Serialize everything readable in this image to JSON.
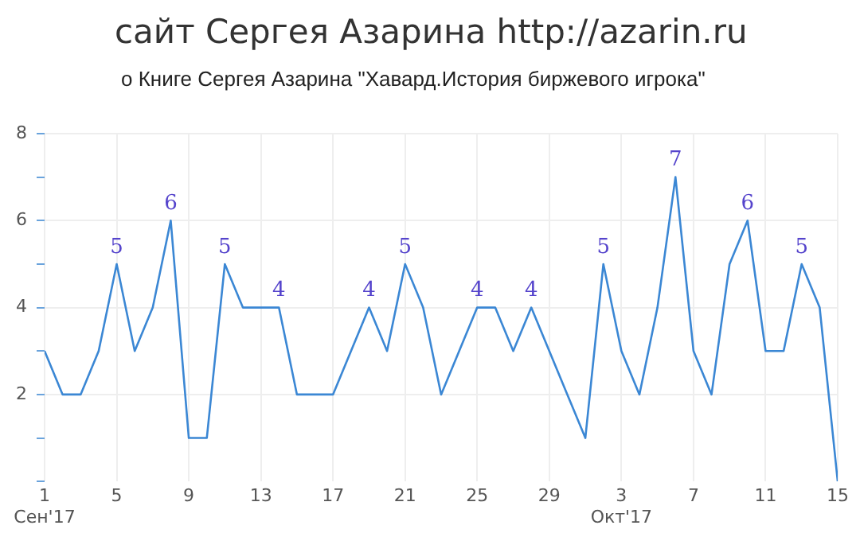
{
  "chart_data": {
    "type": "line",
    "title": "сайт Сергея Азарина http://azarin.ru",
    "subtitle": "о Книге Сергея Азарина \"Хавард.История биржевого игрока\"",
    "x": [
      "2017-09-01",
      "2017-09-02",
      "2017-09-03",
      "2017-09-04",
      "2017-09-05",
      "2017-09-06",
      "2017-09-07",
      "2017-09-08",
      "2017-09-09",
      "2017-09-10",
      "2017-09-11",
      "2017-09-12",
      "2017-09-13",
      "2017-09-14",
      "2017-09-15",
      "2017-09-16",
      "2017-09-17",
      "2017-09-18",
      "2017-09-19",
      "2017-09-20",
      "2017-09-21",
      "2017-09-22",
      "2017-09-23",
      "2017-09-24",
      "2017-09-25",
      "2017-09-26",
      "2017-09-27",
      "2017-09-28",
      "2017-09-29",
      "2017-09-30",
      "2017-10-01",
      "2017-10-02",
      "2017-10-03",
      "2017-10-04",
      "2017-10-05",
      "2017-10-06",
      "2017-10-07",
      "2017-10-08",
      "2017-10-09",
      "2017-10-10",
      "2017-10-11",
      "2017-10-12",
      "2017-10-13",
      "2017-10-14",
      "2017-10-15"
    ],
    "series": [
      {
        "color": "#3b87d4",
        "values": [
          3,
          2,
          2,
          3,
          5,
          3,
          4,
          6,
          1,
          1,
          5,
          4,
          4,
          4,
          2,
          2,
          2,
          3,
          4,
          3,
          5,
          4,
          2,
          3,
          4,
          4,
          3,
          4,
          3,
          2,
          1,
          5,
          3,
          2,
          4,
          7,
          3,
          2,
          5,
          6,
          3,
          3,
          5,
          4,
          0
        ],
        "value_labels": [
          null,
          null,
          null,
          null,
          "5",
          null,
          null,
          "6",
          null,
          null,
          "5",
          null,
          null,
          "4",
          null,
          null,
          null,
          null,
          "4",
          null,
          "5",
          null,
          null,
          null,
          "4",
          null,
          null,
          "4",
          null,
          null,
          null,
          "5",
          null,
          null,
          null,
          "7",
          null,
          null,
          null,
          "6",
          null,
          null,
          "5",
          null,
          null
        ]
      }
    ],
    "xlim": [
      "2017-09-01",
      "2017-10-15"
    ],
    "xticks": [
      {
        "value": "2017-09-01",
        "label": "1\nСен'17"
      },
      {
        "value": "2017-09-05",
        "label": "5"
      },
      {
        "value": "2017-09-09",
        "label": "9"
      },
      {
        "value": "2017-09-13",
        "label": "13"
      },
      {
        "value": "2017-09-17",
        "label": "17"
      },
      {
        "value": "2017-09-21",
        "label": "21"
      },
      {
        "value": "2017-09-25",
        "label": "25"
      },
      {
        "value": "2017-09-29",
        "label": "29"
      },
      {
        "value": "2017-10-03",
        "label": "3\nОкт'17"
      },
      {
        "value": "2017-10-07",
        "label": "7"
      },
      {
        "value": "2017-10-11",
        "label": "11"
      },
      {
        "value": "2017-10-15",
        "label": "15"
      }
    ],
    "ylim": [
      0,
      8
    ],
    "yticks": [
      {
        "value": 0,
        "label": null
      },
      {
        "value": 1,
        "label": null
      },
      2,
      {
        "value": 3,
        "label": null
      },
      4,
      {
        "value": 5,
        "label": null
      },
      6,
      {
        "value": 7,
        "label": null
      },
      8
    ],
    "grid": true,
    "legend": false,
    "marker": "none",
    "line_style": "solid"
  }
}
